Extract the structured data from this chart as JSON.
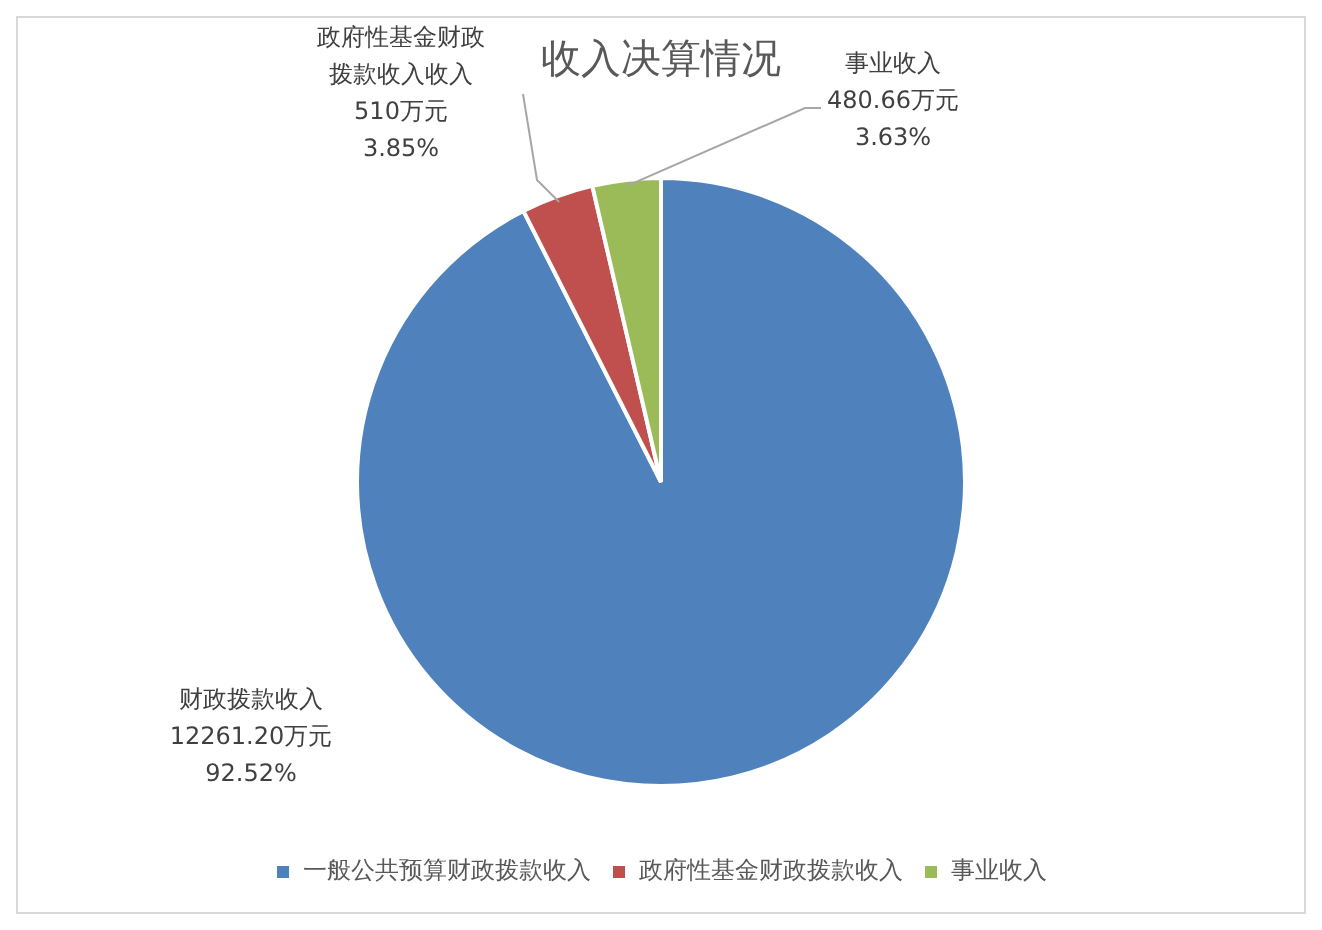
{
  "chart_data": {
    "type": "pie",
    "title": "收入决算情况",
    "categories": [
      "一般公共预算财政拨款收入",
      "政府性基金财政拨款收入",
      "事业收入"
    ],
    "values": [
      12261.2,
      510,
      480.66
    ],
    "colors": [
      "#4f81bd",
      "#c0504d",
      "#9bbb59"
    ],
    "value_labels": [
      "财政拨款收入\n12261.20万元\n92.52%",
      "政府性基金财政拨款收入收入\n510万元\n3.85%",
      "事业收入\n480.66万元\n3.63%"
    ],
    "legend": "bottom"
  }
}
